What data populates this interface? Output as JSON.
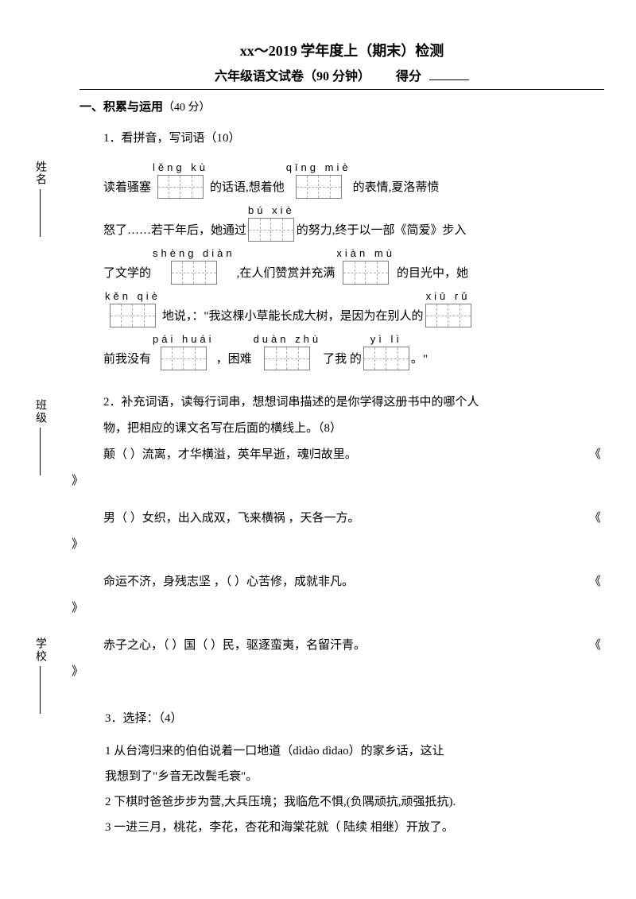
{
  "sidebar": {
    "items": [
      {
        "label": "姓名"
      },
      {
        "label": "班级"
      },
      {
        "label": "学校"
      }
    ]
  },
  "header": {
    "title": "xx～2019 学年度上（期末）检测",
    "subtitle_left": "六年级语文试卷（90 分钟）",
    "subtitle_right": "得分"
  },
  "section1": {
    "label": "一、积累与运用",
    "points": "（40 分）"
  },
  "q1": {
    "title": "1．看拼音，写词语（10）",
    "rows": [
      {
        "parts": [
          {
            "type": "txt",
            "val": "读着骚塞"
          },
          {
            "type": "box",
            "pinyin": "lěnɡ   kù",
            "cells": 2
          },
          {
            "type": "txt",
            "val": "的话语,想着他"
          },
          {
            "type": "box",
            "pinyin": "qīnɡ   miè",
            "cells": 2
          },
          {
            "type": "txt",
            "val": "的表情,夏洛蒂愤"
          }
        ]
      },
      {
        "parts": [
          {
            "type": "txt",
            "val": "怒了……若干年后，她通过"
          },
          {
            "type": "box",
            "pinyin": "bú    xiè",
            "cells": 2
          },
          {
            "type": "txt",
            "val": "的努力,终于以一部《简爱》步入"
          }
        ]
      },
      {
        "parts": [
          {
            "type": "txt",
            "val": "了文学的"
          },
          {
            "type": "box",
            "pinyin": "shènɡ   diàn",
            "cells": 2
          },
          {
            "type": "txt",
            "val": ",在人们赞赏并充满"
          },
          {
            "type": "box",
            "pinyin": "xiàn mù",
            "cells": 2
          },
          {
            "type": "txt",
            "val": "的目光中，她"
          }
        ]
      },
      {
        "parts": [
          {
            "type": "box",
            "pinyin": "kěn   qiè",
            "cells": 2
          },
          {
            "type": "txt",
            "val": "地说，：\"我这棵小草能长成大树，是因为在别人的"
          },
          {
            "type": "box",
            "pinyin": "xiū   rǔ",
            "cells": 2
          }
        ]
      },
      {
        "parts": [
          {
            "type": "txt",
            "val": "前我没有"
          },
          {
            "type": "box",
            "pinyin": "pái huái",
            "cells": 2
          },
          {
            "type": "txt",
            "val": "，困难"
          },
          {
            "type": "box",
            "pinyin": "duàn   zhù",
            "cells": 2
          },
          {
            "type": "txt",
            "val": "了我 的"
          },
          {
            "type": "box",
            "pinyin": "yì   lì",
            "cells": 2
          },
          {
            "type": "txt",
            "val": "。\""
          }
        ]
      }
    ]
  },
  "q2": {
    "title1": "2．补充词语，读每行词串，想想词串描述的是你学得这册书中的哪个人",
    "title2": "物，把相应的课文名写在后面的横线上。（8）",
    "lines": [
      {
        "text": "颠（    ）流离，才华横溢，英年早逝，魂归故里。",
        "end": "《"
      },
      {
        "text": "男（    ）女织，出入成双，飞来横祸   ，天各一方。",
        "end": "《"
      },
      {
        "text": "命运不济，身残志坚   ，（   ）心苦修，成就非凡。",
        "end": "《"
      },
      {
        "text": "赤子之心，（        ）国（        ）民，驱逐蛮夷，名留汗青。",
        "end": "《"
      }
    ],
    "closing": "》"
  },
  "q3": {
    "title": "3．选择：（4）",
    "lines": [
      "1 从台湾归来的伯伯说着一口地道（dìdào    dìdao）的家乡话，这让",
      "我想到了\"乡音无改鬓毛衰\"。",
      "2 下棋时爸爸步步为营,大兵压境；我临危不惧,(负隅顽抗,顽强抵抗).",
      "3 一进三月，桃花，李花，杏花和海棠花就（ 陆续   相继）开放了。"
    ]
  }
}
